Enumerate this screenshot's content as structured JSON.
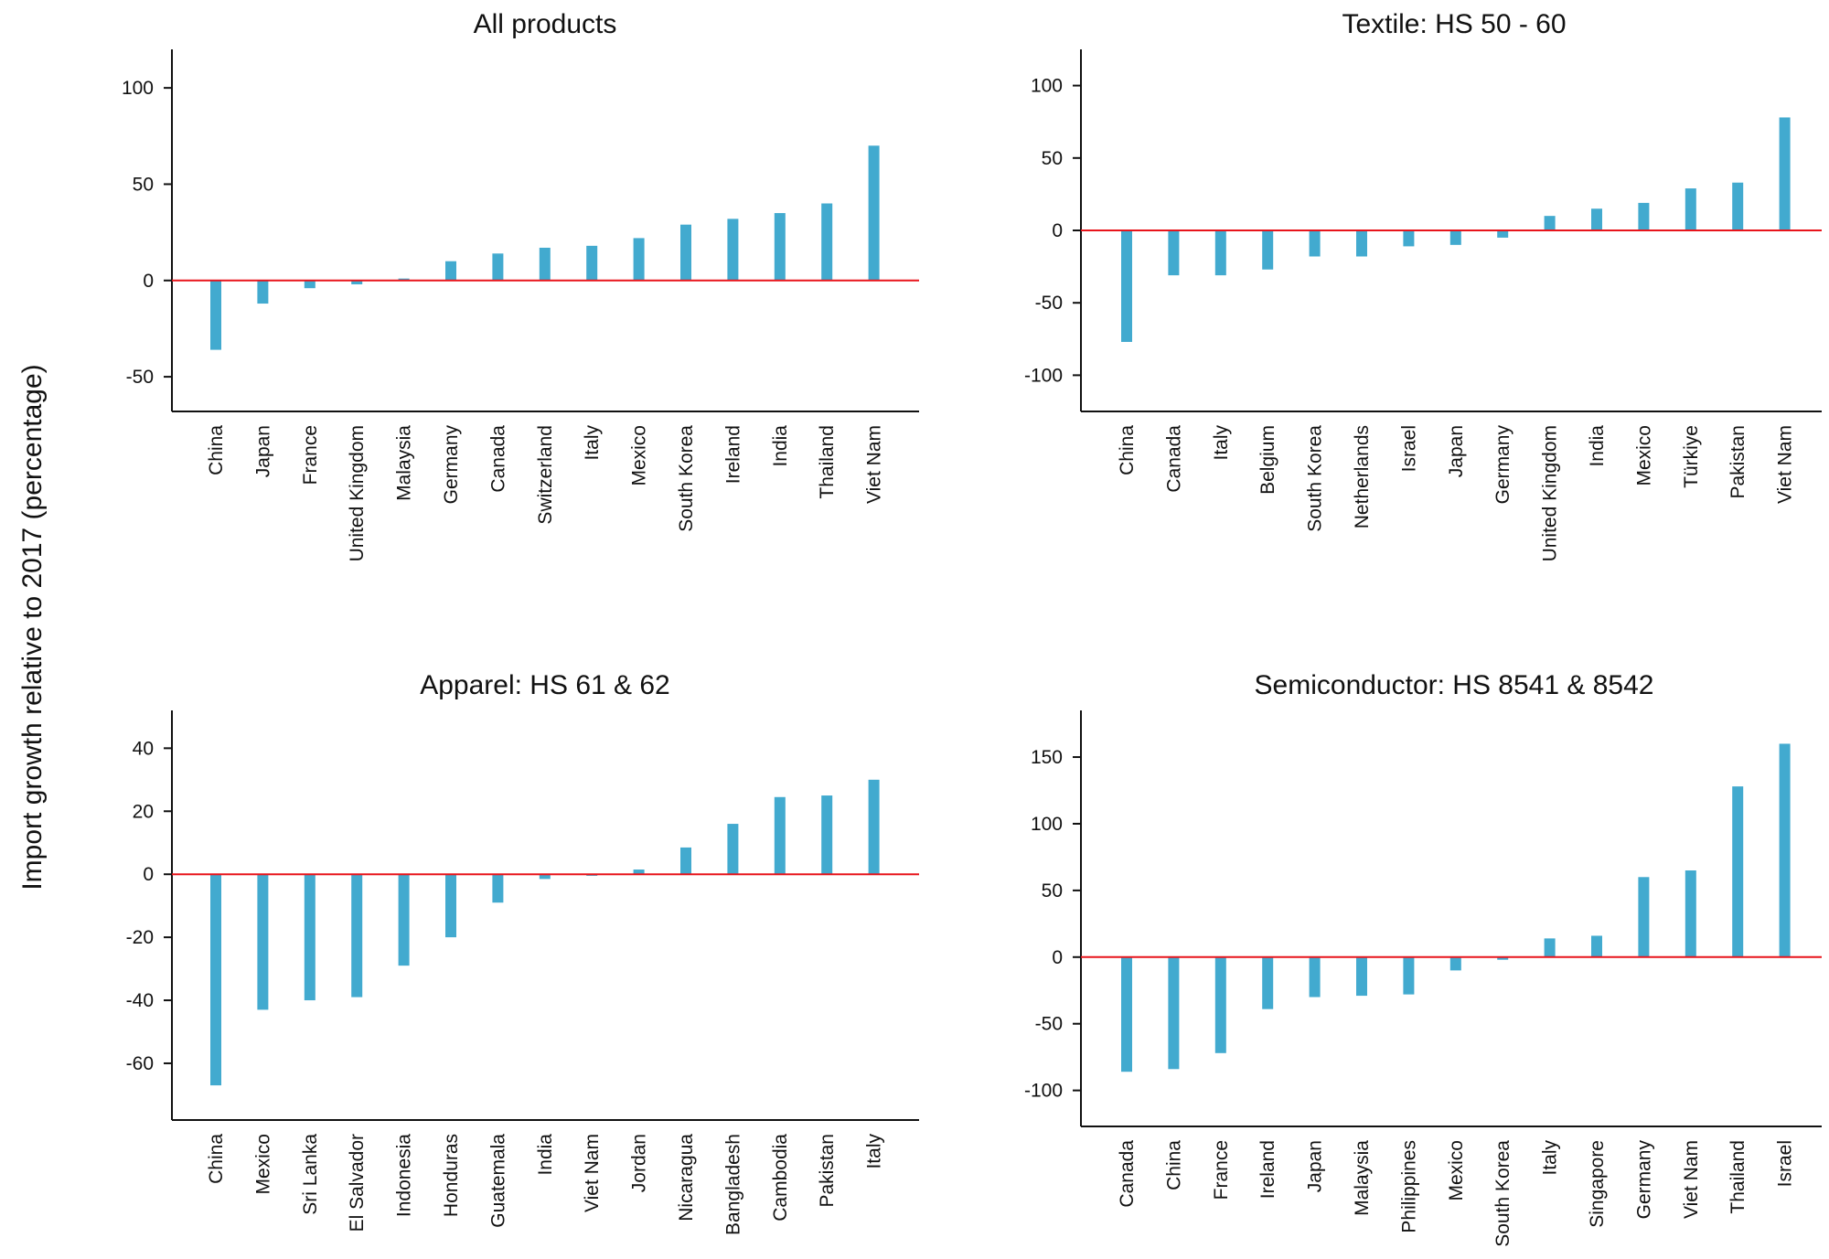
{
  "figure": {
    "ylabel": "Import growth relative to 2017 (percentage)",
    "bar_color": "#42AACF",
    "zero_line_color": "#E8141B"
  },
  "chart_data": [
    {
      "type": "bar",
      "title": "All products",
      "xlabel": "",
      "ylabel": "Import growth relative to 2017 (percentage)",
      "categories": [
        "China",
        "Japan",
        "France",
        "United Kingdom",
        "Malaysia",
        "Germany",
        "Canada",
        "Switzerland",
        "Italy",
        "Mexico",
        "South Korea",
        "Ireland",
        "India",
        "Thailand",
        "Viet Nam"
      ],
      "values": [
        -36,
        -12,
        -4,
        -2,
        1,
        10,
        14,
        17,
        18,
        22,
        29,
        32,
        35,
        40,
        70
      ],
      "ylim": [
        -68,
        120
      ],
      "yticks": [
        -50,
        0,
        50,
        100
      ]
    },
    {
      "type": "bar",
      "title": "Textile: HS 50 - 60",
      "xlabel": "",
      "ylabel": "Import growth relative to 2017 (percentage)",
      "categories": [
        "China",
        "Canada",
        "Italy",
        "Belgium",
        "South Korea",
        "Netherlands",
        "Israel",
        "Japan",
        "Germany",
        "United Kingdom",
        "India",
        "Mexico",
        "Türkiye",
        "Pakistan",
        "Viet Nam"
      ],
      "values": [
        -77,
        -31,
        -31,
        -27,
        -18,
        -18,
        -11,
        -10,
        -5,
        10,
        15,
        19,
        29,
        33,
        78
      ],
      "ylim": [
        -125,
        125
      ],
      "yticks": [
        -100,
        -50,
        0,
        50,
        100
      ]
    },
    {
      "type": "bar",
      "title": "Apparel: HS 61 & 62",
      "xlabel": "",
      "ylabel": "Import growth relative to 2017 (percentage)",
      "categories": [
        "China",
        "Mexico",
        "Sri Lanka",
        "El Salvador",
        "Indonesia",
        "Honduras",
        "Guatemala",
        "India",
        "Viet Nam",
        "Jordan",
        "Nicaragua",
        "Bangladesh",
        "Cambodia",
        "Pakistan",
        "Italy"
      ],
      "values": [
        -67,
        -43,
        -40,
        -39,
        -29,
        -20,
        -9,
        -1.5,
        -0.5,
        1.5,
        8.5,
        16,
        24.5,
        25,
        30
      ],
      "ylim": [
        -78,
        52
      ],
      "yticks": [
        -60,
        -40,
        -20,
        0,
        20,
        40
      ]
    },
    {
      "type": "bar",
      "title": "Semiconductor: HS 8541 & 8542",
      "xlabel": "",
      "ylabel": "Import growth relative to 2017 (percentage)",
      "categories": [
        "Canada",
        "China",
        "France",
        "Ireland",
        "Japan",
        "Malaysia",
        "Philippines",
        "Mexico",
        "South Korea",
        "Italy",
        "Singapore",
        "Germany",
        "Viet Nam",
        "Thailand",
        "Israel"
      ],
      "values": [
        -86,
        -84,
        -72,
        -39,
        -30,
        -29,
        -28,
        -10,
        -2,
        14,
        16,
        60,
        65,
        128,
        160
      ],
      "ylim": [
        -127,
        185
      ],
      "yticks": [
        -100,
        -50,
        0,
        50,
        100,
        150
      ]
    }
  ]
}
